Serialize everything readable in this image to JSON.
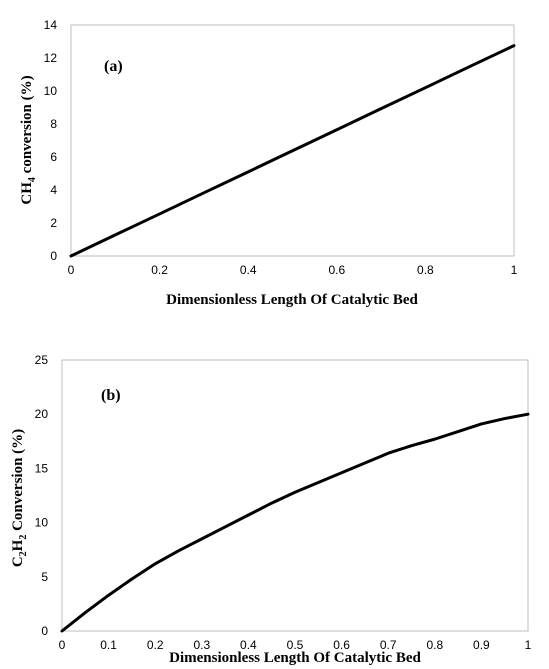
{
  "chart_data": [
    {
      "type": "line",
      "panel_label": "(a)",
      "xlabel": "Dimensionless Length Of Catalytic Bed",
      "ylabel": {
        "pre": "CH",
        "sub": "4",
        "post": " conversion (%)"
      },
      "xlim": [
        0,
        1
      ],
      "ylim": [
        0,
        14
      ],
      "xticks": [
        0,
        0.2,
        0.4,
        0.6,
        0.8,
        1
      ],
      "xtick_labels": [
        "0",
        "0.2",
        "0.4",
        "0.6",
        "0.8",
        "1"
      ],
      "yticks": [
        0,
        2,
        4,
        6,
        8,
        10,
        12,
        14
      ],
      "ytick_labels": [
        "0",
        "2",
        "4",
        "6",
        "8",
        "10",
        "12",
        "14"
      ],
      "grid": false,
      "color": "#000000",
      "series": [
        {
          "x": [
            0,
            0.1,
            0.2,
            0.3,
            0.4,
            0.5,
            0.6,
            0.7,
            0.8,
            0.9,
            1.0
          ],
          "y": [
            0,
            1.28,
            2.55,
            3.83,
            5.1,
            6.38,
            7.65,
            8.93,
            10.2,
            11.48,
            12.75
          ]
        }
      ]
    },
    {
      "type": "line",
      "panel_label": "(b)",
      "xlabel": "Dimensionless Length Of Catalytic Bed",
      "ylabel": {
        "pre": "C",
        "sub": "2",
        "mid": "H",
        "sub2": "2",
        "post": " Conversion (%)"
      },
      "xlim": [
        0,
        1
      ],
      "ylim": [
        0,
        25
      ],
      "xticks": [
        0,
        0.1,
        0.2,
        0.3,
        0.4,
        0.5,
        0.6,
        0.7,
        0.8,
        0.9,
        1
      ],
      "xtick_labels": [
        "0",
        "0.1",
        "0.2",
        "0.3",
        "0.4",
        "0.5",
        "0.6",
        "0.7",
        "0.8",
        "0.9",
        "1"
      ],
      "yticks": [
        0,
        5,
        10,
        15,
        20,
        25
      ],
      "ytick_labels": [
        "0",
        "5",
        "10",
        "15",
        "20",
        "25"
      ],
      "grid": false,
      "color": "#000000",
      "series": [
        {
          "x": [
            0,
            0.05,
            0.1,
            0.15,
            0.2,
            0.25,
            0.3,
            0.35,
            0.4,
            0.45,
            0.5,
            0.55,
            0.6,
            0.65,
            0.7,
            0.75,
            0.8,
            0.85,
            0.9,
            0.95,
            1.0
          ],
          "y": [
            0,
            1.7,
            3.3,
            4.8,
            6.2,
            7.4,
            8.5,
            9.6,
            10.7,
            11.8,
            12.8,
            13.7,
            14.6,
            15.5,
            16.4,
            17.1,
            17.7,
            18.4,
            19.1,
            19.6,
            20.0
          ]
        }
      ]
    }
  ]
}
